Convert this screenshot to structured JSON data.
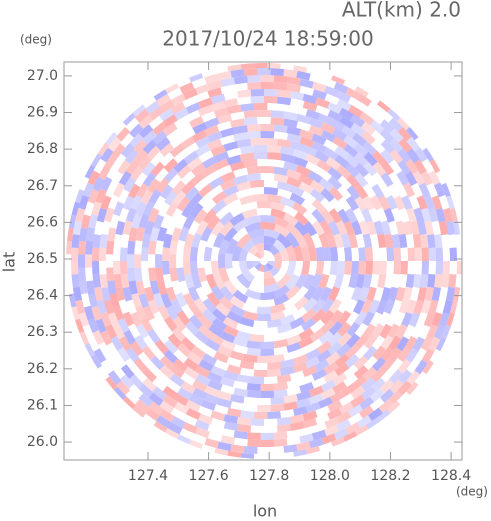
{
  "chart_data": {
    "type": "radar-ppi",
    "title": "2017/10/24 18:59:00",
    "subtitle": "ALT(km) 2.0",
    "x_label": "lon",
    "y_label": "lat",
    "x_unit": "(deg)",
    "y_unit": "(deg)",
    "xlim": [
      127.123,
      128.436
    ],
    "ylim": [
      25.951,
      27.038
    ],
    "xticks": [
      127.4,
      127.6,
      127.8,
      {
        "value": 128.0,
        "label": "128.0"
      },
      128.2,
      128.4
    ],
    "yticks": [
      {
        "value": 26.0,
        "label": "26.0"
      },
      26.1,
      26.2,
      26.3,
      26.4,
      26.5,
      26.6,
      26.7,
      26.8,
      26.9,
      {
        "value": 27.0,
        "label": "27.0"
      }
    ]
  }
}
